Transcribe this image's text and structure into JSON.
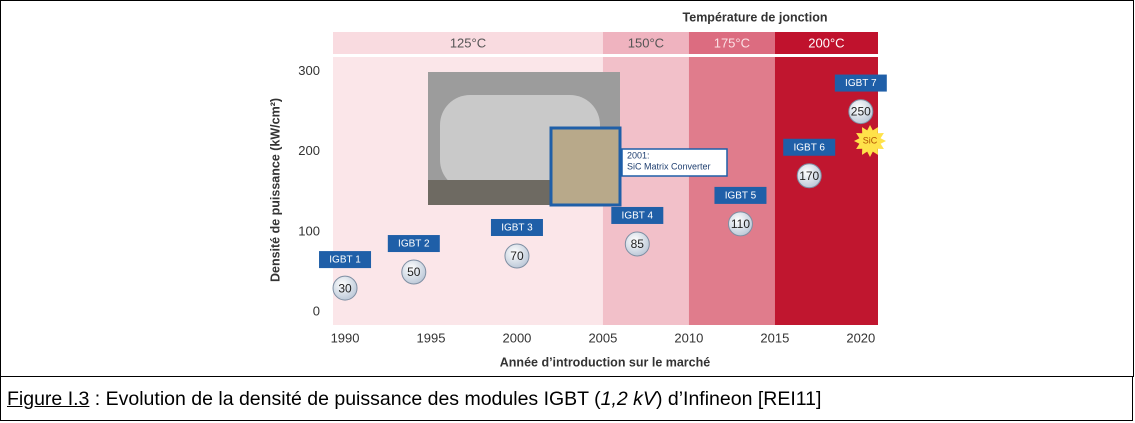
{
  "chart_data": {
    "type": "scatter",
    "band_title": "Température de jonction",
    "bands": [
      {
        "label": "125°C",
        "start": 1990,
        "end": 2005,
        "color": "#fbe6e9",
        "header_color": "#f9dbe0",
        "text_color": "#555555"
      },
      {
        "label": "150°C",
        "start": 2005,
        "end": 2010,
        "color": "#f2c0c9",
        "header_color": "#efb3bf",
        "text_color": "#555555"
      },
      {
        "label": "175°C",
        "start": 2010,
        "end": 2015,
        "color": "#e07c8c",
        "header_color": "#dc6c80",
        "text_color": "#fbe0e4"
      },
      {
        "label": "200°C",
        "start": 2015,
        "end": 2021,
        "color": "#c0162f",
        "header_color": "#c0122d",
        "text_color": "#ffffff"
      }
    ],
    "y_label": "Densité de puissance (kW/cm²)",
    "x_label": "Année d’introduction sur le marché",
    "x": [
      1990,
      1994,
      2000,
      2007,
      2013,
      2017,
      2020
    ],
    "values": [
      30,
      50,
      70,
      85,
      110,
      170,
      250
    ],
    "point_labels": [
      "IGBT 1",
      "IGBT 2",
      "IGBT 3",
      "IGBT 4",
      "IGBT 5",
      "IGBT 6",
      "IGBT 7"
    ],
    "label_color": "#1f5fa8",
    "xlim": [
      1989.3,
      2021
    ],
    "ylim": [
      -16,
      318
    ],
    "xticks": [
      1990,
      1995,
      2000,
      2005,
      2010,
      2015,
      2020
    ],
    "yticks": [
      0,
      100,
      200,
      300
    ],
    "annotation": [
      "2001:",
      "SiC Matrix Converter"
    ],
    "badge": "SiC"
  },
  "caption": {
    "figure": "Figure I.3",
    "text1": " : Evolution de la densité de puissance des modules IGBT (",
    "italic": "1,2 kV",
    "text2": ") d’Infineon  [REI11]"
  }
}
